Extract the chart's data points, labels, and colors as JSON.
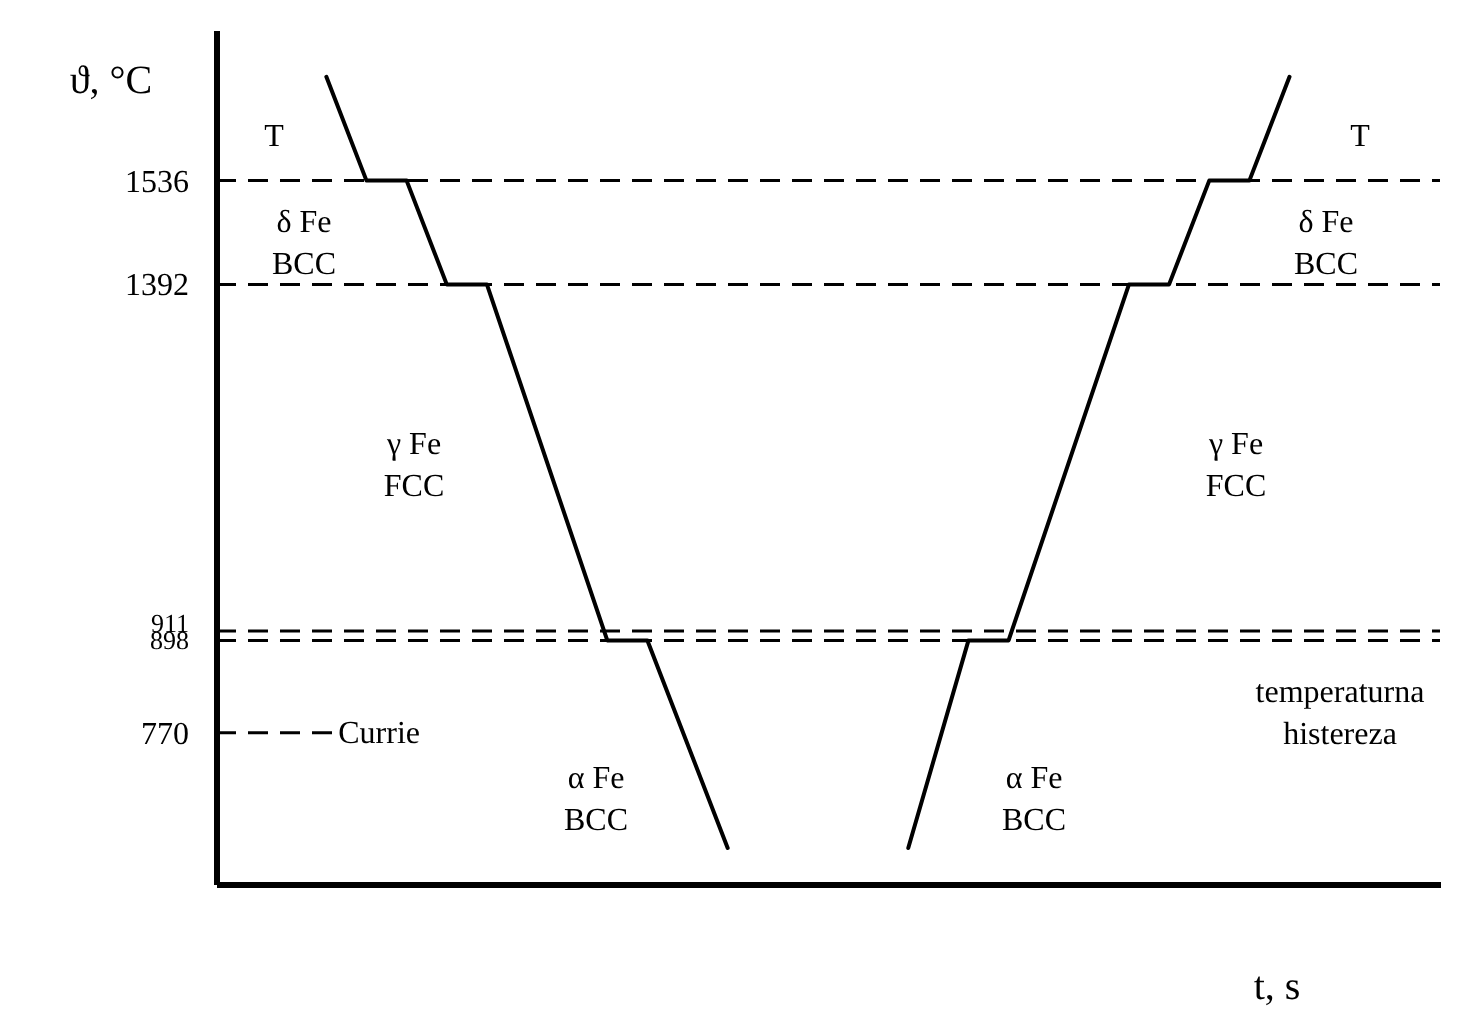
{
  "chart_data": {
    "type": "line",
    "xlabel": "t, s",
    "ylabel": "ϑ, °C",
    "ylim": [
      560,
      1745
    ],
    "yticks": [
      770,
      898,
      911,
      1392,
      1536
    ],
    "tick_labels": "y",
    "categories": [
      null,
      null,
      null,
      null,
      null,
      null,
      null,
      null,
      null,
      null,
      null,
      null,
      null,
      null,
      null,
      null,
      null,
      null,
      null,
      null,
      null,
      null,
      null,
      null,
      null,
      null,
      null,
      null,
      null,
      null,
      null,
      null,
      null,
      null,
      null,
      null,
      null,
      null,
      null,
      null,
      null,
      null,
      null,
      null,
      null,
      null,
      null,
      null,
      null,
      null,
      null,
      null,
      null,
      null,
      null,
      null,
      null,
      null,
      null,
      null,
      null
    ],
    "series": [
      {
        "color": "#000000",
        "values": [
          null,
          null,
          null,
          null,
          null,
          1680,
          null,
          1536,
          null,
          1536,
          null,
          1392,
          null,
          1392,
          null,
          null,
          null,
          null,
          null,
          898,
          null,
          898,
          null,
          null,
          null,
          610,
          null,
          null,
          null,
          null,
          null,
          null,
          null,
          null,
          null,
          null,
          null,
          null,
          null,
          null,
          null,
          null,
          null,
          null,
          null,
          null,
          null,
          null,
          null,
          null,
          null,
          null,
          null,
          null,
          null,
          null,
          null,
          null,
          null,
          null,
          null
        ]
      },
      {
        "color": "#000000",
        "values": [
          null,
          null,
          null,
          null,
          null,
          null,
          null,
          null,
          null,
          null,
          null,
          null,
          null,
          null,
          null,
          null,
          null,
          null,
          null,
          null,
          null,
          null,
          null,
          null,
          null,
          null,
          null,
          null,
          null,
          null,
          null,
          null,
          null,
          null,
          610,
          null,
          null,
          898,
          null,
          898,
          null,
          null,
          null,
          null,
          null,
          1392,
          null,
          1392,
          null,
          1536,
          null,
          1536,
          null,
          1680,
          null,
          null,
          null,
          null,
          null,
          null,
          null
        ]
      }
    ],
    "ref_lines": [
      {
        "axis": "y",
        "value": 1536,
        "line_style": "dashed"
      },
      {
        "axis": "y",
        "value": 1392,
        "line_style": "dashed"
      },
      {
        "axis": "y",
        "value": 911,
        "line_style": "dashed"
      },
      {
        "axis": "y",
        "value": 898,
        "line_style": "dashed"
      },
      {
        "axis": "y",
        "value": 770,
        "label": "Currie",
        "line_style": "dashed"
      }
    ],
    "annotations": [
      "T",
      "δ Fe\nBCC",
      "γ Fe\nFCC",
      "α Fe\nBCC",
      "T",
      "δ Fe\nBCC",
      "γ Fe\nFCC",
      "α Fe\nBCC",
      "temperaturna\nhistereza"
    ]
  }
}
